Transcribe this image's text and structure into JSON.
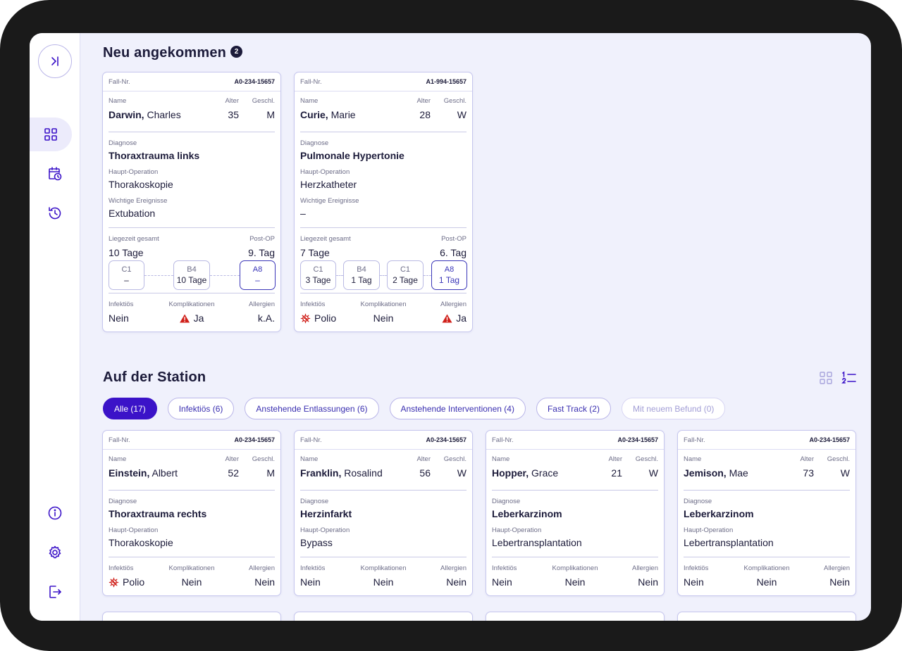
{
  "sidebar": {
    "toggle": "expand-sidebar",
    "items": [
      {
        "name": "dashboard",
        "icon": "grid-icon",
        "active": true
      },
      {
        "name": "calendar",
        "icon": "calendar-clock-icon",
        "active": false
      },
      {
        "name": "history",
        "icon": "history-icon",
        "active": false
      }
    ],
    "bottom_items": [
      {
        "name": "info",
        "icon": "info-icon"
      },
      {
        "name": "settings",
        "icon": "gear-icon"
      },
      {
        "name": "logout",
        "icon": "logout-icon"
      }
    ]
  },
  "labels": {
    "case_no": "Fall-Nr.",
    "name": "Name",
    "age": "Alter",
    "sex": "Geschl.",
    "diagnosis": "Diagnose",
    "main_op": "Haupt-Operation",
    "events": "Wichtige Ereignisse",
    "stay_total": "Liegezeit gesamt",
    "post_op": "Post-OP",
    "infectious": "Infektiös",
    "complications": "Komplikationen",
    "allergies": "Allergien"
  },
  "new_arrivals": {
    "title": "Neu angekommen",
    "count": "2",
    "cards": [
      {
        "case_no": "A0-234-15657",
        "last_name": "Darwin,",
        "first_name": "Charles",
        "age": "35",
        "sex": "M",
        "diagnosis": "Thoraxtrauma links",
        "main_op": "Thorakoskopie",
        "events": "Extubation",
        "stay_total": "10 Tage",
        "post_op": "9. Tag",
        "stations": [
          {
            "code": "C1",
            "duration": "–"
          },
          {
            "code": "B4",
            "duration": "10 Tage"
          },
          {
            "code": "A8",
            "duration": "–"
          }
        ],
        "infectious": "Nein",
        "complications": "Ja",
        "allergies": "k.A."
      },
      {
        "case_no": "A1-994-15657",
        "last_name": "Curie,",
        "first_name": "Marie",
        "age": "28",
        "sex": "W",
        "diagnosis": "Pulmonale Hypertonie",
        "main_op": "Herzkatheter",
        "events": "–",
        "stay_total": "7 Tage",
        "post_op": "6. Tag",
        "stations": [
          {
            "code": "C1",
            "duration": "3 Tage"
          },
          {
            "code": "B4",
            "duration": "1 Tag"
          },
          {
            "code": "C1",
            "duration": "2 Tage"
          },
          {
            "code": "A8",
            "duration": "1 Tag"
          }
        ],
        "infectious": "Polio",
        "complications": "Nein",
        "allergies": "Ja"
      }
    ]
  },
  "station": {
    "title": "Auf der Station",
    "filters": [
      {
        "label": "Alle (17)",
        "state": "active"
      },
      {
        "label": "Infektiös (6)",
        "state": "normal"
      },
      {
        "label": "Anstehende Entlassungen (6)",
        "state": "normal"
      },
      {
        "label": "Anstehende Interventionen (4)",
        "state": "normal"
      },
      {
        "label": "Fast Track (2)",
        "state": "normal"
      },
      {
        "label": "Mit neuem Befund (0)",
        "state": "disabled"
      }
    ],
    "cards": [
      {
        "case_no": "A0-234-15657",
        "last_name": "Einstein,",
        "first_name": "Albert",
        "age": "52",
        "sex": "M",
        "diagnosis": "Thoraxtrauma rechts",
        "main_op": "Thorakoskopie",
        "infectious": "Polio",
        "complications": "Nein",
        "allergies": "Nein"
      },
      {
        "case_no": "A0-234-15657",
        "last_name": "Franklin,",
        "first_name": "Rosalind",
        "age": "56",
        "sex": "W",
        "diagnosis": "Herzinfarkt",
        "main_op": "Bypass",
        "infectious": "Nein",
        "complications": "Nein",
        "allergies": "Nein"
      },
      {
        "case_no": "A0-234-15657",
        "last_name": "Hopper,",
        "first_name": "Grace",
        "age": "21",
        "sex": "W",
        "diagnosis": "Leberkarzinom",
        "main_op": "Lebertransplantation",
        "infectious": "Nein",
        "complications": "Nein",
        "allergies": "Nein"
      },
      {
        "case_no": "A0-234-15657",
        "last_name": "Jemison,",
        "first_name": "Mae",
        "age": "73",
        "sex": "W",
        "diagnosis": "Leberkarzinom",
        "main_op": "Lebertransplantation",
        "infectious": "Nein",
        "complications": "Nein",
        "allergies": "Nein"
      }
    ]
  },
  "colors": {
    "accent": "#3b13c8",
    "warning": "#d0201a",
    "background": "#f0f1fc"
  }
}
